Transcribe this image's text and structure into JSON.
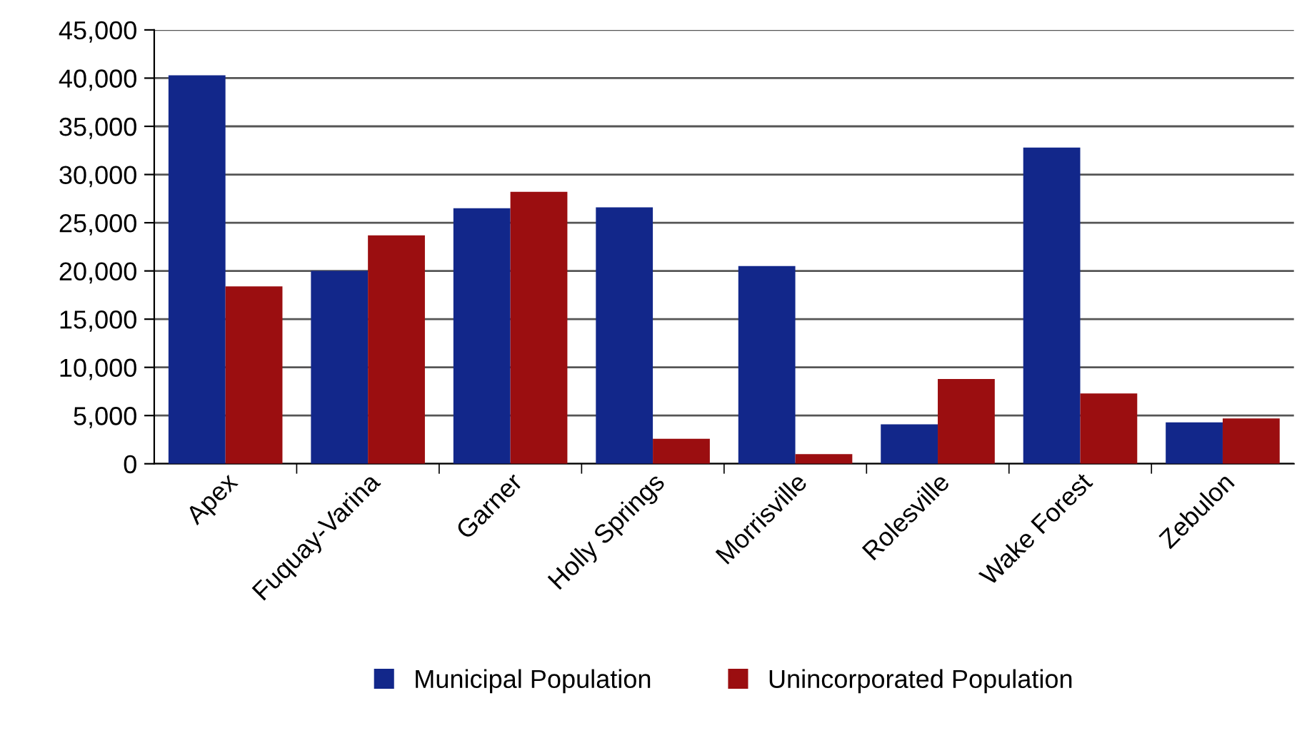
{
  "chart_data": {
    "type": "bar",
    "categories": [
      "Apex",
      "Fuquay-Varina",
      "Garner",
      "Holly Springs",
      "Morrisville",
      "Rolesville",
      "Wake Forest",
      "Zebulon"
    ],
    "series": [
      {
        "name": "Municipal Population",
        "color": "#12278a",
        "values": [
          40300,
          20000,
          26500,
          26600,
          20500,
          4100,
          32800,
          4300
        ]
      },
      {
        "name": "Unincorporated Population",
        "color": "#9b0e10",
        "values": [
          18400,
          23700,
          28200,
          2600,
          1000,
          8800,
          7300,
          4700
        ]
      }
    ],
    "ylim": [
      0,
      45000
    ],
    "yticks": [
      {
        "value": 0,
        "label": "0"
      },
      {
        "value": 5000,
        "label": "5,000"
      },
      {
        "value": 10000,
        "label": "10,000"
      },
      {
        "value": 15000,
        "label": "15,000"
      },
      {
        "value": 20000,
        "label": "20,000"
      },
      {
        "value": 25000,
        "label": "25,000"
      },
      {
        "value": 30000,
        "label": "30,000"
      },
      {
        "value": 35000,
        "label": "35,000"
      },
      {
        "value": 40000,
        "label": "40,000"
      },
      {
        "value": 45000,
        "label": "45,000"
      }
    ],
    "grid": "y",
    "legend": "bottom"
  }
}
